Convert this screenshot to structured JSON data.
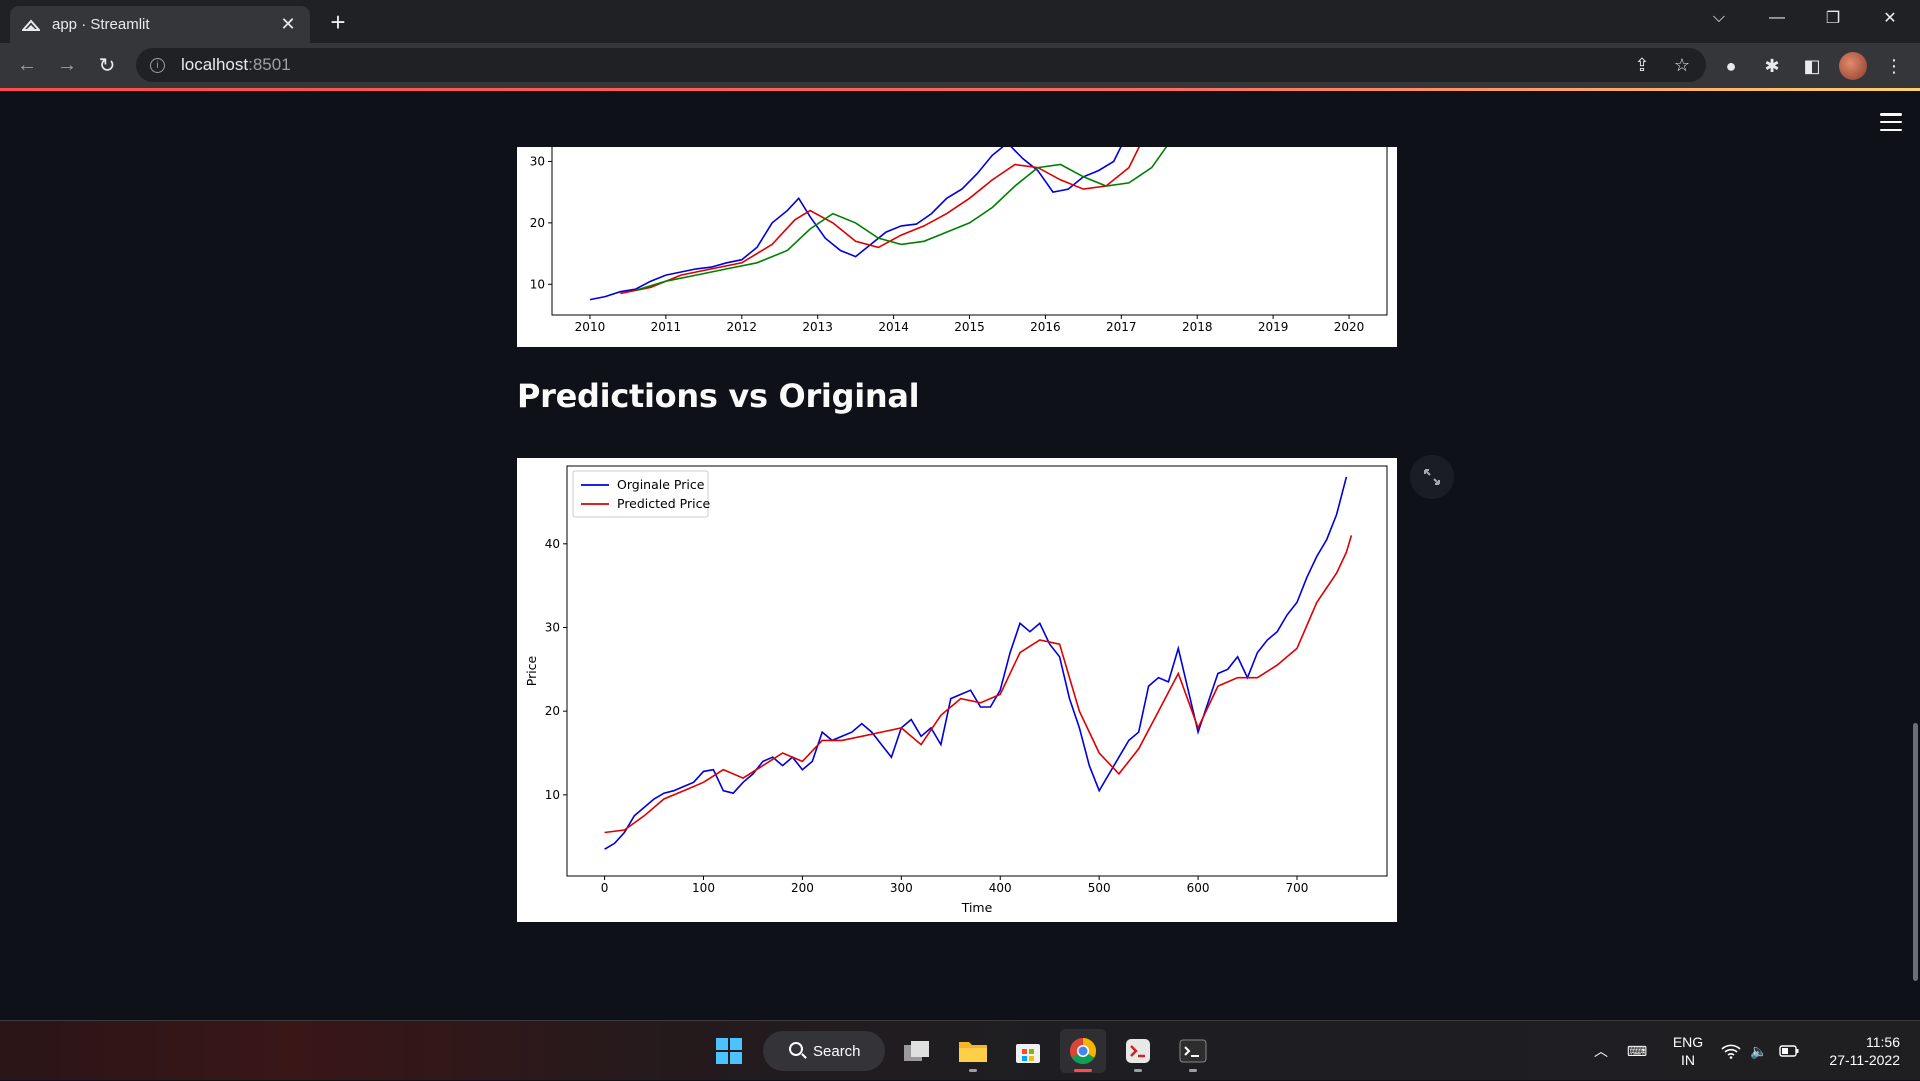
{
  "browser": {
    "tab_title": "app · Streamlit",
    "url_host": "localhost",
    "url_port": ":8501"
  },
  "page": {
    "heading": "Predictions vs Original"
  },
  "chart_data": [
    {
      "type": "line",
      "title": "",
      "xlabel": "",
      "ylabel": "",
      "x_ticks": [
        "2010",
        "2011",
        "2012",
        "2013",
        "2014",
        "2015",
        "2016",
        "2017",
        "2018",
        "2019",
        "2020"
      ],
      "y_ticks": [
        10,
        20,
        30
      ],
      "xlim": [
        2009.5,
        2020.5
      ],
      "ylim": [
        5,
        33
      ],
      "series": [
        {
          "color": "#0000dd",
          "x": [
            2010.0,
            2010.2,
            2010.4,
            2010.6,
            2010.8,
            2011.0,
            2011.2,
            2011.4,
            2011.6,
            2011.8,
            2012.0,
            2012.2,
            2012.4,
            2012.6,
            2012.75,
            2012.9,
            2013.1,
            2013.3,
            2013.5,
            2013.7,
            2013.9,
            2014.1,
            2014.3,
            2014.5,
            2014.7,
            2014.9,
            2015.1,
            2015.3,
            2015.5,
            2015.7,
            2015.9,
            2016.1,
            2016.3,
            2016.5,
            2016.7,
            2016.9,
            2017.1
          ],
          "y": [
            7.5,
            8.0,
            8.8,
            9.2,
            10.5,
            11.5,
            12.0,
            12.5,
            12.8,
            13.5,
            14.0,
            16.0,
            20.0,
            22.0,
            24.0,
            21.0,
            17.5,
            15.5,
            14.5,
            16.5,
            18.5,
            19.5,
            19.8,
            21.5,
            24.0,
            25.5,
            28.0,
            31.0,
            33.0,
            30.5,
            28.5,
            25.0,
            25.5,
            27.5,
            28.5,
            30.0,
            35.0
          ]
        },
        {
          "color": "#dd0000",
          "x": [
            2010.4,
            2010.8,
            2011.2,
            2011.6,
            2012.0,
            2012.4,
            2012.7,
            2012.9,
            2013.2,
            2013.5,
            2013.8,
            2014.1,
            2014.4,
            2014.7,
            2015.0,
            2015.3,
            2015.6,
            2015.9,
            2016.2,
            2016.5,
            2016.8,
            2017.1,
            2017.3
          ],
          "y": [
            8.5,
            9.5,
            11.5,
            12.5,
            13.5,
            16.5,
            20.5,
            22.0,
            20.0,
            17.0,
            16.0,
            18.0,
            19.5,
            21.5,
            24.0,
            27.0,
            29.5,
            29.0,
            27.0,
            25.5,
            26.0,
            29.0,
            34.0
          ]
        },
        {
          "color": "#008000",
          "x": [
            2010.6,
            2011.0,
            2011.4,
            2011.8,
            2012.2,
            2012.6,
            2012.9,
            2013.2,
            2013.5,
            2013.8,
            2014.1,
            2014.4,
            2014.7,
            2015.0,
            2015.3,
            2015.6,
            2015.9,
            2016.2,
            2016.5,
            2016.8,
            2017.1,
            2017.4,
            2017.6
          ],
          "y": [
            9.0,
            10.5,
            11.5,
            12.5,
            13.5,
            15.5,
            19.0,
            21.5,
            20.0,
            17.5,
            16.5,
            17.0,
            18.5,
            20.0,
            22.5,
            26.0,
            29.0,
            29.5,
            27.5,
            26.0,
            26.5,
            29.0,
            32.5
          ]
        }
      ]
    },
    {
      "type": "line",
      "title": "",
      "xlabel": "Time",
      "ylabel": "Price",
      "x_ticks": [
        0,
        100,
        200,
        300,
        400,
        500,
        600,
        700
      ],
      "y_ticks": [
        10,
        20,
        30,
        40
      ],
      "xlim": [
        -38,
        791
      ],
      "ylim": [
        0.3,
        49.3
      ],
      "legend": "upper-left",
      "series": [
        {
          "name": "Orginale Price",
          "color": "#0000dd",
          "x": [
            0,
            10,
            20,
            30,
            40,
            50,
            60,
            70,
            80,
            90,
            100,
            110,
            120,
            130,
            140,
            150,
            160,
            170,
            180,
            190,
            200,
            210,
            220,
            230,
            240,
            250,
            260,
            270,
            280,
            290,
            300,
            310,
            320,
            330,
            340,
            350,
            360,
            370,
            380,
            390,
            400,
            410,
            420,
            430,
            440,
            450,
            460,
            470,
            480,
            490,
            500,
            510,
            520,
            530,
            540,
            550,
            560,
            570,
            580,
            590,
            600,
            610,
            620,
            630,
            640,
            650,
            660,
            670,
            680,
            690,
            700,
            710,
            720,
            730,
            740,
            750
          ],
          "y": [
            3.5,
            4.2,
            5.5,
            7.5,
            8.5,
            9.5,
            10.2,
            10.5,
            11.0,
            11.5,
            12.8,
            13.0,
            10.5,
            10.2,
            11.5,
            12.5,
            14.0,
            14.5,
            13.5,
            14.5,
            13.0,
            14.0,
            17.5,
            16.5,
            17.0,
            17.5,
            18.5,
            17.5,
            16.0,
            14.5,
            18.0,
            19.0,
            17.0,
            18.0,
            16.0,
            21.5,
            22.0,
            22.5,
            20.5,
            20.5,
            22.5,
            27.0,
            30.5,
            29.5,
            30.5,
            28.0,
            26.5,
            21.5,
            18.0,
            13.5,
            10.5,
            12.5,
            14.5,
            16.5,
            17.5,
            23.0,
            24.0,
            23.5,
            27.5,
            22.5,
            17.5,
            21.0,
            24.5,
            25.0,
            26.5,
            24.0,
            27.0,
            28.5,
            29.5,
            31.5,
            33.0,
            36.0,
            38.5,
            40.5,
            43.5,
            48.0
          ]
        },
        {
          "name": "Predicted Price",
          "color": "#dd0000",
          "x": [
            0,
            20,
            40,
            60,
            80,
            100,
            120,
            140,
            160,
            180,
            200,
            220,
            240,
            260,
            280,
            300,
            320,
            340,
            360,
            380,
            400,
            420,
            440,
            460,
            480,
            500,
            520,
            540,
            560,
            580,
            600,
            620,
            640,
            660,
            680,
            700,
            720,
            740,
            750,
            755
          ],
          "y": [
            5.5,
            5.8,
            7.5,
            9.5,
            10.5,
            11.5,
            13.0,
            12.0,
            13.5,
            15.0,
            14.0,
            16.5,
            16.5,
            17.0,
            17.5,
            18.0,
            16.0,
            19.5,
            21.5,
            21.0,
            22.0,
            27.0,
            28.5,
            28.0,
            20.0,
            15.0,
            12.5,
            15.5,
            20.0,
            24.5,
            18.0,
            23.0,
            24.0,
            24.0,
            25.5,
            27.5,
            33.0,
            36.5,
            39.0,
            41.0
          ]
        }
      ]
    }
  ]
}
